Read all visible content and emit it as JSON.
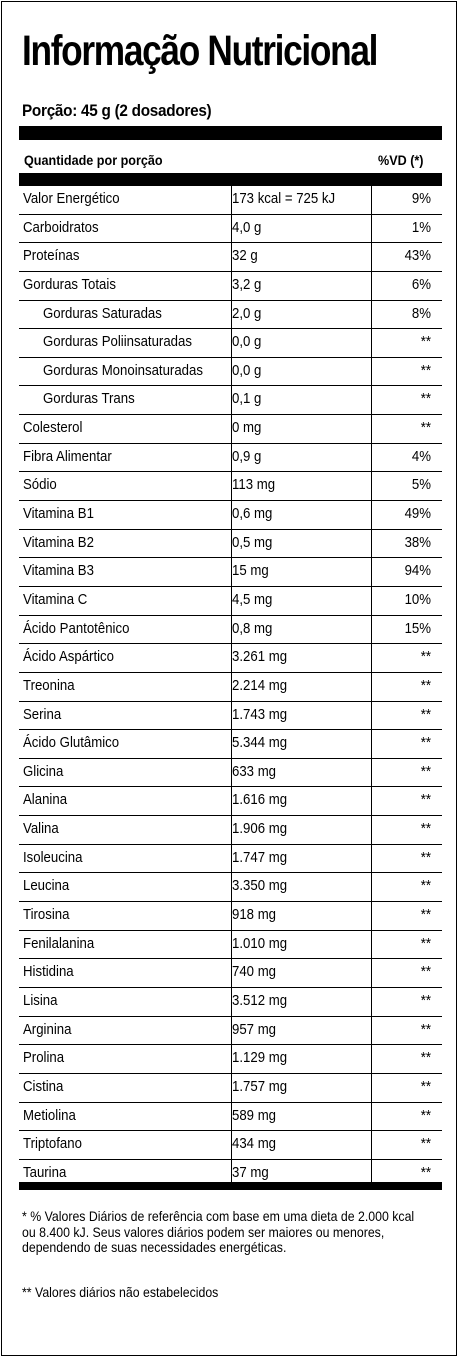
{
  "title": "Informação Nutricional",
  "serving": "Porção: 45 g (2 dosadores)",
  "header": {
    "quantity": "Quantidade por porção",
    "vd": "%VD (*)"
  },
  "rows": [
    {
      "name": "Valor Energético",
      "qty": "173 kcal = 725 kJ",
      "vd": "9%",
      "indent": false
    },
    {
      "name": "Carboidratos",
      "qty": "4,0 g",
      "vd": "1%",
      "indent": false
    },
    {
      "name": "Proteínas",
      "qty": "32 g",
      "vd": "43%",
      "indent": false
    },
    {
      "name": "Gorduras Totais",
      "qty": "3,2 g",
      "vd": "6%",
      "indent": false
    },
    {
      "name": "Gorduras Saturadas",
      "qty": "2,0 g",
      "vd": "8%",
      "indent": true
    },
    {
      "name": "Gorduras Poliinsaturadas",
      "qty": "0,0 g",
      "vd": "**",
      "indent": true
    },
    {
      "name": "Gorduras Monoinsaturadas",
      "qty": "0,0 g",
      "vd": "**",
      "indent": true
    },
    {
      "name": "Gorduras Trans",
      "qty": "0,1 g",
      "vd": "**",
      "indent": true
    },
    {
      "name": "Colesterol",
      "qty": "0 mg",
      "vd": "**",
      "indent": false
    },
    {
      "name": "Fibra Alimentar",
      "qty": "0,9 g",
      "vd": "4%",
      "indent": false
    },
    {
      "name": "Sódio",
      "qty": "113 mg",
      "vd": "5%",
      "indent": false
    },
    {
      "name": "Vitamina B1",
      "qty": "0,6 mg",
      "vd": "49%",
      "indent": false
    },
    {
      "name": "Vitamina B2",
      "qty": "0,5 mg",
      "vd": "38%",
      "indent": false
    },
    {
      "name": "Vitamina B3",
      "qty": "15 mg",
      "vd": "94%",
      "indent": false
    },
    {
      "name": "Vitamina C",
      "qty": "4,5 mg",
      "vd": "10%",
      "indent": false
    },
    {
      "name": "Ácido Pantotênico",
      "qty": "0,8 mg",
      "vd": "15%",
      "indent": false
    },
    {
      "name": "Ácido Aspártico",
      "qty": "3.261 mg",
      "vd": "**",
      "indent": false
    },
    {
      "name": "Treonina",
      "qty": "2.214 mg",
      "vd": "**",
      "indent": false
    },
    {
      "name": "Serina",
      "qty": "1.743 mg",
      "vd": "**",
      "indent": false
    },
    {
      "name": "Ácido Glutâmico",
      "qty": "5.344 mg",
      "vd": "**",
      "indent": false
    },
    {
      "name": "Glicina",
      "qty": "633 mg",
      "vd": "**",
      "indent": false
    },
    {
      "name": "Alanina",
      "qty": "1.616 mg",
      "vd": "**",
      "indent": false
    },
    {
      "name": "Valina",
      "qty": "1.906 mg",
      "vd": "**",
      "indent": false
    },
    {
      "name": "Isoleucina",
      "qty": "1.747 mg",
      "vd": "**",
      "indent": false
    },
    {
      "name": "Leucina",
      "qty": "3.350 mg",
      "vd": "**",
      "indent": false
    },
    {
      "name": "Tirosina",
      "qty": "918 mg",
      "vd": "**",
      "indent": false
    },
    {
      "name": "Fenilalanina",
      "qty": "1.010 mg",
      "vd": "**",
      "indent": false
    },
    {
      "name": "Histidina",
      "qty": "740 mg",
      "vd": "**",
      "indent": false
    },
    {
      "name": "Lisina",
      "qty": "3.512 mg",
      "vd": "**",
      "indent": false
    },
    {
      "name": "Arginina",
      "qty": "957 mg",
      "vd": "**",
      "indent": false
    },
    {
      "name": "Prolina",
      "qty": "1.129 mg",
      "vd": "**",
      "indent": false
    },
    {
      "name": "Cistina",
      "qty": "1.757 mg",
      "vd": "**",
      "indent": false
    },
    {
      "name": "Metiolina",
      "qty": "589 mg",
      "vd": "**",
      "indent": false
    },
    {
      "name": "Triptofano",
      "qty": "434 mg",
      "vd": "**",
      "indent": false
    },
    {
      "name": "Taurina",
      "qty": "37 mg",
      "vd": "**",
      "indent": false
    }
  ],
  "footnotes": {
    "vd_note": "* % Valores Diários de referência com base em uma dieta de 2.000 kcal ou 8.400 kJ. Seus valores diários podem ser maiores ou menores, dependendo de suas necessidades energéticas.",
    "not_established": "** Valores diários não estabelecidos"
  }
}
